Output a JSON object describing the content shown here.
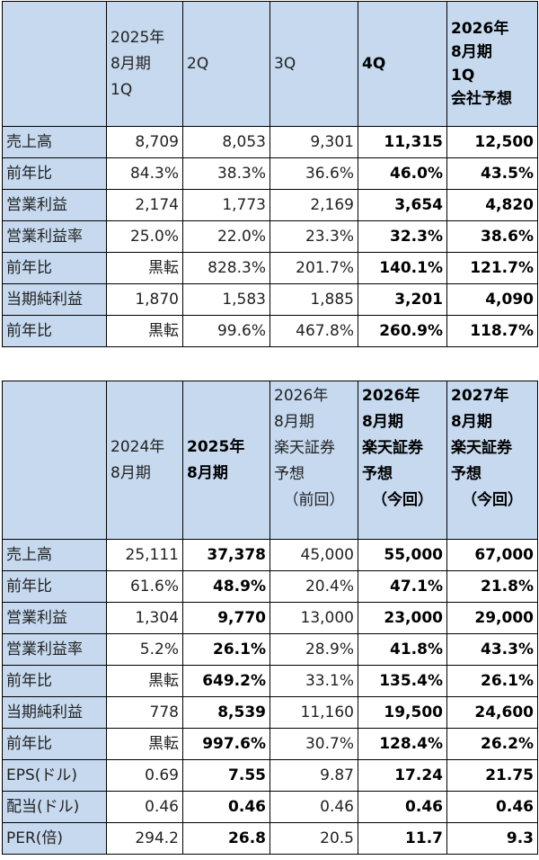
{
  "table1": {
    "header": [
      "",
      [
        "2025年",
        "8月期",
        "1Q"
      ],
      [
        "2Q"
      ],
      [
        "3Q"
      ],
      [
        "4Q"
      ],
      [
        "2026年",
        "8月期",
        "1Q",
        "会社予想"
      ]
    ],
    "rows": [
      {
        "label": "売上高",
        "values": [
          "8,709",
          "8,053",
          "9,301",
          "11,315",
          "12,500"
        ]
      },
      {
        "label": "前年比",
        "values": [
          "84.3%",
          "38.3%",
          "36.6%",
          "46.0%",
          "43.5%"
        ]
      },
      {
        "label": "営業利益",
        "values": [
          "2,174",
          "1,773",
          "2,169",
          "3,654",
          "4,820"
        ]
      },
      {
        "label": "営業利益率",
        "values": [
          "25.0%",
          "22.0%",
          "23.3%",
          "32.3%",
          "38.6%"
        ]
      },
      {
        "label": "前年比",
        "values": [
          "黒転",
          "828.3%",
          "201.7%",
          "140.1%",
          "121.7%"
        ]
      },
      {
        "label": "当期純利益",
        "values": [
          "1,870",
          "1,583",
          "1,885",
          "3,201",
          "4,090"
        ]
      },
      {
        "label": "前年比",
        "values": [
          "黒転",
          "99.6%",
          "467.8%",
          "260.9%",
          "118.7%"
        ]
      }
    ]
  },
  "table2": {
    "header": [
      "",
      [
        "2024年",
        "8月期"
      ],
      [
        "2025年",
        "8月期"
      ],
      [
        "2026年",
        "8月期",
        "楽天証券",
        "予想",
        "（前回）"
      ],
      [
        "2026年",
        "8月期",
        "楽天証券",
        "予想",
        "（今回）"
      ],
      [
        "2027年",
        "8月期",
        "楽天証券",
        "予想",
        "（今回）"
      ]
    ],
    "rows": [
      {
        "label": "売上高",
        "values": [
          "25,111",
          "37,378",
          "45,000",
          "55,000",
          "67,000"
        ]
      },
      {
        "label": "前年比",
        "values": [
          "61.6%",
          "48.9%",
          "20.4%",
          "47.1%",
          "21.8%"
        ]
      },
      {
        "label": "営業利益",
        "values": [
          "1,304",
          "9,770",
          "13,000",
          "23,000",
          "29,000"
        ]
      },
      {
        "label": "営業利益率",
        "values": [
          "5.2%",
          "26.1%",
          "28.9%",
          "41.8%",
          "43.3%"
        ]
      },
      {
        "label": "前年比",
        "values": [
          "黒転",
          "649.2%",
          "33.1%",
          "135.4%",
          "26.1%"
        ]
      },
      {
        "label": "当期純利益",
        "values": [
          "778",
          "8,539",
          "11,160",
          "19,500",
          "24,600"
        ]
      },
      {
        "label": "前年比",
        "values": [
          "黒転",
          "997.6%",
          "30.7%",
          "128.4%",
          "26.2%"
        ]
      },
      {
        "label": "EPS(ドル)",
        "values": [
          "0.69",
          "7.55",
          "9.87",
          "17.24",
          "21.75"
        ]
      },
      {
        "label": "配当(ドル)",
        "values": [
          "0.46",
          "0.46",
          "0.46",
          "0.46",
          "0.46"
        ]
      },
      {
        "label": "PER(倍)",
        "values": [
          "294.2",
          "26.8",
          "20.5",
          "11.7",
          "9.3"
        ]
      }
    ]
  }
}
